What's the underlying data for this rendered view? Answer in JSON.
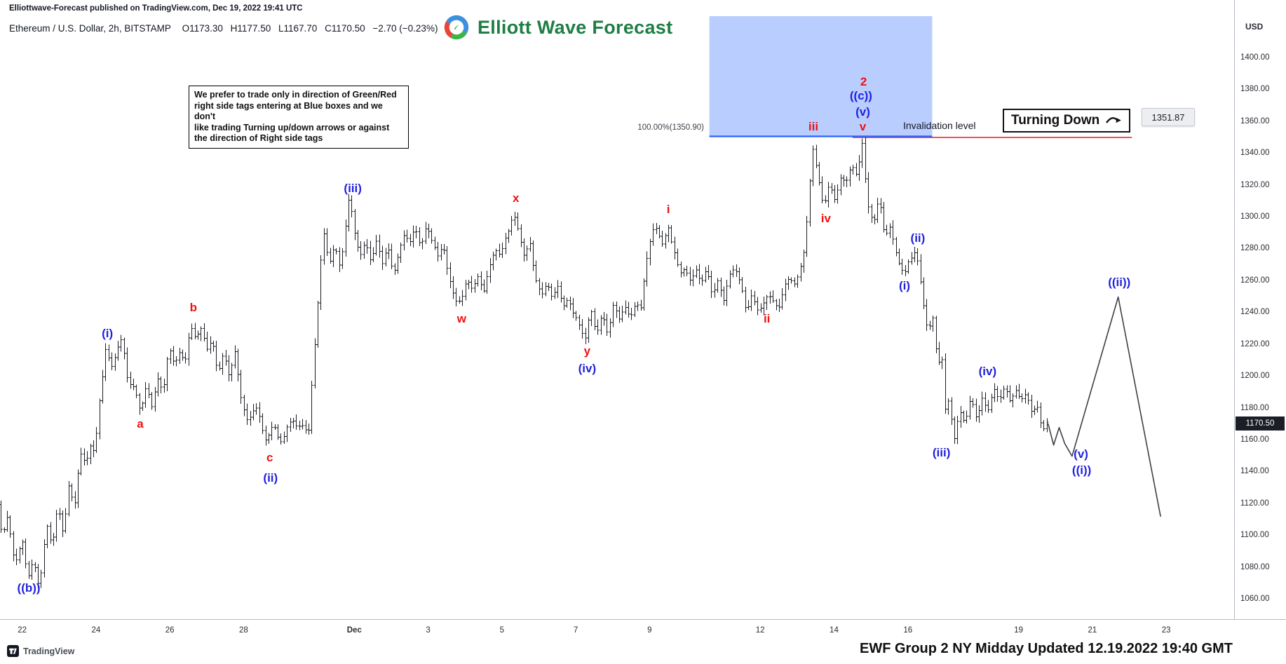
{
  "attribution": "Elliottwave-Forecast published on TradingView.com, Dec 19, 2022 19:41 UTC",
  "header": {
    "symbol": "Ethereum / U.S. Dollar, 2h, BITSTAMP",
    "open": "O1173.30",
    "high": "H1177.50",
    "low": "L1167.70",
    "close": "C1170.50",
    "change": "−2.70 (−0.23%)"
  },
  "logo": {
    "text": "Elliott Wave Forecast"
  },
  "currency": "USD",
  "note_box": {
    "lines": [
      "We prefer to trade only in direction of Green/Red",
      "right side tags entering at Blue boxes and we don't",
      "like trading Turning up/down arrows or against",
      "the direction of Right side tags"
    ]
  },
  "fib_label": "100.00%(1350.90)",
  "invalidation_label": "Invalidation level",
  "turning_down": {
    "label": "Turning Down",
    "price": "1351.87"
  },
  "footer": {
    "tradingview": "TradingView",
    "caption": "EWF Group 2 NY Midday Updated 12.19.2022 19:40 GMT"
  },
  "colors": {
    "wave_blue": "#2222dd",
    "wave_red": "#f01111",
    "box_fill": "rgba(41,98,255,0.32)",
    "fib_blue": "#2962ff",
    "invalidation_red": "#f23645",
    "bar": "#1a1c22",
    "projection": "#3c3f46",
    "logo_green": "#1e7e45",
    "badge_bg": "#1b1e27",
    "axis_line": "#b7bac4"
  },
  "chart_data": {
    "type": "ohlc-bar",
    "title": "Ethereum / U.S. Dollar, 2h, BITSTAMP",
    "ylim": [
      1060,
      1400
    ],
    "last_price": 1170.5,
    "last_price_label": "1170.50",
    "price_ticks": [
      1400,
      1380,
      1360,
      1340,
      1320,
      1300,
      1280,
      1260,
      1240,
      1220,
      1200,
      1180,
      1160,
      1140,
      1120,
      1100,
      1080,
      1060
    ],
    "time_ticks": [
      {
        "label": "22",
        "day": 0
      },
      {
        "label": "24",
        "day": 2
      },
      {
        "label": "26",
        "day": 4
      },
      {
        "label": "28",
        "day": 6
      },
      {
        "label": "Dec",
        "day": 9,
        "bold": true
      },
      {
        "label": "3",
        "day": 11
      },
      {
        "label": "5",
        "day": 13
      },
      {
        "label": "7",
        "day": 15
      },
      {
        "label": "9",
        "day": 17
      },
      {
        "label": "12",
        "day": 20
      },
      {
        "label": "14",
        "day": 22
      },
      {
        "label": "16",
        "day": 24
      },
      {
        "label": "19",
        "day": 27
      },
      {
        "label": "21",
        "day": 29
      },
      {
        "label": "23",
        "day": 31
      }
    ],
    "fib_level": {
      "price": 1350.9,
      "label": "100.00%(1350.90)"
    },
    "blue_box": {
      "day_start": 18.62,
      "day_end": 24.66,
      "price_bottom": 1350.9
    },
    "invalidation_line": {
      "price": 1350.9,
      "day_start": 22.5,
      "day_end": 30.07
    },
    "bars_start": -0.7,
    "bars_end": 27.8,
    "bars_per_day": 12,
    "price_path": [
      [
        -0.7,
        1132
      ],
      [
        -0.5,
        1098
      ],
      [
        -0.35,
        1112
      ],
      [
        -0.15,
        1085
      ],
      [
        0.05,
        1095
      ],
      [
        0.2,
        1072
      ],
      [
        0.35,
        1082
      ],
      [
        0.5,
        1070
      ],
      [
        0.7,
        1108
      ],
      [
        0.85,
        1094
      ],
      [
        1.0,
        1115
      ],
      [
        1.15,
        1102
      ],
      [
        1.3,
        1132
      ],
      [
        1.45,
        1120
      ],
      [
        1.6,
        1152
      ],
      [
        1.75,
        1142
      ],
      [
        1.9,
        1158
      ],
      [
        2.0,
        1150
      ],
      [
        2.15,
        1192
      ],
      [
        2.3,
        1218
      ],
      [
        2.45,
        1204
      ],
      [
        2.6,
        1215
      ],
      [
        2.75,
        1222
      ],
      [
        2.9,
        1200
      ],
      [
        3.1,
        1192
      ],
      [
        3.25,
        1178
      ],
      [
        3.4,
        1190
      ],
      [
        3.55,
        1182
      ],
      [
        3.7,
        1200
      ],
      [
        3.85,
        1192
      ],
      [
        4.0,
        1218
      ],
      [
        4.15,
        1205
      ],
      [
        4.3,
        1215
      ],
      [
        4.45,
        1208
      ],
      [
        4.6,
        1237
      ],
      [
        4.75,
        1222
      ],
      [
        4.9,
        1230
      ],
      [
        5.05,
        1215
      ],
      [
        5.2,
        1222
      ],
      [
        5.35,
        1205
      ],
      [
        5.5,
        1215
      ],
      [
        5.65,
        1200
      ],
      [
        5.8,
        1212
      ],
      [
        5.95,
        1190
      ],
      [
        6.15,
        1172
      ],
      [
        6.35,
        1184
      ],
      [
        6.6,
        1158
      ],
      [
        6.85,
        1170
      ],
      [
        7.1,
        1160
      ],
      [
        7.35,
        1173
      ],
      [
        7.5,
        1165
      ],
      [
        7.65,
        1172
      ],
      [
        7.8,
        1168
      ],
      [
        7.95,
        1215
      ],
      [
        8.1,
        1262
      ],
      [
        8.2,
        1288
      ],
      [
        8.35,
        1272
      ],
      [
        8.5,
        1284
      ],
      [
        8.65,
        1270
      ],
      [
        8.9,
        1310
      ],
      [
        9.05,
        1290
      ],
      [
        9.2,
        1275
      ],
      [
        9.35,
        1288
      ],
      [
        9.5,
        1272
      ],
      [
        9.65,
        1284
      ],
      [
        9.8,
        1270
      ],
      [
        9.95,
        1280
      ],
      [
        10.1,
        1268
      ],
      [
        10.25,
        1278
      ],
      [
        10.4,
        1290
      ],
      [
        10.55,
        1282
      ],
      [
        10.7,
        1292
      ],
      [
        10.85,
        1284
      ],
      [
        11.0,
        1296
      ],
      [
        11.15,
        1286
      ],
      [
        11.3,
        1272
      ],
      [
        11.45,
        1282
      ],
      [
        11.6,
        1262
      ],
      [
        11.75,
        1252
      ],
      [
        11.95,
        1247
      ],
      [
        12.1,
        1260
      ],
      [
        12.25,
        1253
      ],
      [
        12.4,
        1264
      ],
      [
        12.55,
        1257
      ],
      [
        12.7,
        1268
      ],
      [
        12.85,
        1280
      ],
      [
        13.0,
        1272
      ],
      [
        13.15,
        1290
      ],
      [
        13.35,
        1303
      ],
      [
        13.5,
        1292
      ],
      [
        13.65,
        1272
      ],
      [
        13.8,
        1282
      ],
      [
        13.95,
        1262
      ],
      [
        14.1,
        1252
      ],
      [
        14.25,
        1262
      ],
      [
        14.4,
        1246
      ],
      [
        14.55,
        1256
      ],
      [
        14.7,
        1242
      ],
      [
        14.85,
        1252
      ],
      [
        15.0,
        1240
      ],
      [
        15.15,
        1230
      ],
      [
        15.3,
        1223
      ],
      [
        15.45,
        1240
      ],
      [
        15.6,
        1230
      ],
      [
        15.75,
        1240
      ],
      [
        15.9,
        1228
      ],
      [
        16.05,
        1242
      ],
      [
        16.2,
        1234
      ],
      [
        16.35,
        1246
      ],
      [
        16.5,
        1238
      ],
      [
        16.65,
        1248
      ],
      [
        16.8,
        1240
      ],
      [
        16.95,
        1272
      ],
      [
        17.1,
        1290
      ],
      [
        17.25,
        1296
      ],
      [
        17.4,
        1284
      ],
      [
        17.55,
        1292
      ],
      [
        17.7,
        1278
      ],
      [
        17.85,
        1262
      ],
      [
        18.0,
        1272
      ],
      [
        18.15,
        1260
      ],
      [
        18.3,
        1268
      ],
      [
        18.45,
        1256
      ],
      [
        18.6,
        1266
      ],
      [
        18.75,
        1252
      ],
      [
        18.9,
        1262
      ],
      [
        19.05,
        1250
      ],
      [
        19.2,
        1260
      ],
      [
        19.35,
        1268
      ],
      [
        19.5,
        1258
      ],
      [
        19.65,
        1244
      ],
      [
        19.8,
        1252
      ],
      [
        19.95,
        1240
      ],
      [
        20.15,
        1245
      ],
      [
        20.35,
        1252
      ],
      [
        20.55,
        1244
      ],
      [
        20.75,
        1262
      ],
      [
        20.95,
        1254
      ],
      [
        21.1,
        1268
      ],
      [
        21.25,
        1282
      ],
      [
        21.45,
        1347
      ],
      [
        21.6,
        1322
      ],
      [
        21.75,
        1306
      ],
      [
        21.9,
        1320
      ],
      [
        22.05,
        1314
      ],
      [
        22.2,
        1326
      ],
      [
        22.35,
        1319
      ],
      [
        22.5,
        1332
      ],
      [
        22.65,
        1324
      ],
      [
        22.8,
        1350
      ],
      [
        22.95,
        1308
      ],
      [
        23.1,
        1296
      ],
      [
        23.25,
        1310
      ],
      [
        23.4,
        1288
      ],
      [
        23.55,
        1296
      ],
      [
        23.7,
        1280
      ],
      [
        23.85,
        1270
      ],
      [
        23.95,
        1262
      ],
      [
        24.1,
        1272
      ],
      [
        24.25,
        1280
      ],
      [
        24.45,
        1250
      ],
      [
        24.6,
        1228
      ],
      [
        24.7,
        1238
      ],
      [
        24.85,
        1205
      ],
      [
        24.95,
        1215
      ],
      [
        25.05,
        1178
      ],
      [
        25.15,
        1188
      ],
      [
        25.3,
        1163
      ],
      [
        25.45,
        1178
      ],
      [
        25.6,
        1170
      ],
      [
        25.75,
        1184
      ],
      [
        25.9,
        1176
      ],
      [
        26.05,
        1187
      ],
      [
        26.2,
        1180
      ],
      [
        26.35,
        1190
      ],
      [
        26.5,
        1183
      ],
      [
        26.65,
        1194
      ],
      [
        26.8,
        1186
      ],
      [
        26.95,
        1195
      ],
      [
        27.1,
        1182
      ],
      [
        27.25,
        1189
      ],
      [
        27.4,
        1175
      ],
      [
        27.55,
        1183
      ],
      [
        27.7,
        1168
      ],
      [
        27.8,
        1170.5
      ]
    ],
    "projection_path": [
      [
        27.8,
        1170.5
      ],
      [
        27.95,
        1157
      ],
      [
        28.1,
        1168
      ],
      [
        28.25,
        1158
      ],
      [
        28.45,
        1150
      ],
      [
        29.7,
        1250
      ],
      [
        30.85,
        1112
      ]
    ],
    "wave_labels": [
      {
        "text": "((b))",
        "color": "blue",
        "day": 0.18,
        "price": 1067
      },
      {
        "text": "(i)",
        "color": "blue",
        "day": 2.31,
        "price": 1227
      },
      {
        "text": "a",
        "color": "red",
        "day": 3.2,
        "price": 1170
      },
      {
        "text": "b",
        "color": "red",
        "day": 4.64,
        "price": 1243
      },
      {
        "text": "c",
        "color": "red",
        "day": 6.71,
        "price": 1149
      },
      {
        "text": "(ii)",
        "color": "blue",
        "day": 6.73,
        "price": 1136
      },
      {
        "text": "(iii)",
        "color": "blue",
        "day": 8.96,
        "price": 1318
      },
      {
        "text": "w",
        "color": "red",
        "day": 11.91,
        "price": 1236
      },
      {
        "text": "x",
        "color": "red",
        "day": 13.38,
        "price": 1312
      },
      {
        "text": "y",
        "color": "red",
        "day": 15.31,
        "price": 1216
      },
      {
        "text": "(iv)",
        "color": "blue",
        "day": 15.31,
        "price": 1205
      },
      {
        "text": "i",
        "color": "red",
        "day": 17.51,
        "price": 1305
      },
      {
        "text": "ii",
        "color": "red",
        "day": 20.18,
        "price": 1236
      },
      {
        "text": "iii",
        "color": "red",
        "day": 21.44,
        "price": 1357
      },
      {
        "text": "iv",
        "color": "red",
        "day": 21.78,
        "price": 1299
      },
      {
        "text": "v",
        "color": "red",
        "day": 22.78,
        "price": 1357
      },
      {
        "text": "(v)",
        "color": "blue",
        "day": 22.78,
        "price": 1366
      },
      {
        "text": "((c))",
        "color": "blue",
        "day": 22.73,
        "price": 1376
      },
      {
        "text": "2",
        "color": "red",
        "day": 22.8,
        "price": 1385
      },
      {
        "text": "(i)",
        "color": "blue",
        "day": 23.91,
        "price": 1257
      },
      {
        "text": "(ii)",
        "color": "blue",
        "day": 24.27,
        "price": 1287
      },
      {
        "text": "(iii)",
        "color": "blue",
        "day": 24.91,
        "price": 1152
      },
      {
        "text": "(iv)",
        "color": "blue",
        "day": 26.16,
        "price": 1203
      },
      {
        "text": "(v)",
        "color": "blue",
        "day": 28.69,
        "price": 1151
      },
      {
        "text": "((i))",
        "color": "blue",
        "day": 28.71,
        "price": 1141
      },
      {
        "text": "((ii))",
        "color": "blue",
        "day": 29.73,
        "price": 1259
      }
    ]
  }
}
